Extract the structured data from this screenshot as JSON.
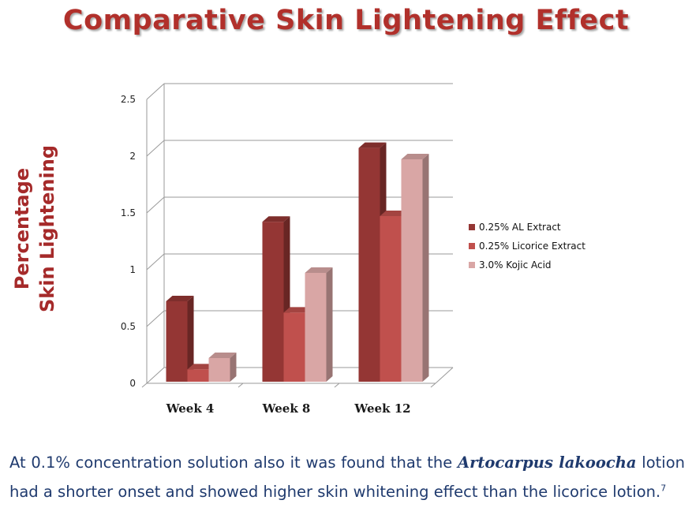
{
  "title": "Comparative Skin Lightening Effect",
  "ylabel_line1": "Percentage",
  "ylabel_line2": "Skin Lightening",
  "caption": {
    "before": "At 0.1% concentration solution also it was found that the ",
    "species": "Artocarpus lakoocha",
    "after": " lotion had a shorter onset and showed higher skin whitening effect than the licorice lotion.",
    "ref": "7"
  },
  "chart_data": {
    "type": "bar",
    "title": "Comparative Skin Lightening Effect",
    "xlabel": "",
    "ylabel": "Percentage Skin Lightening",
    "categories": [
      "Week 4",
      "Week 8",
      "Week 12"
    ],
    "series": [
      {
        "name": "0.25% AL Extract",
        "values": [
          0.75,
          1.45,
          2.1
        ],
        "color": "#943634"
      },
      {
        "name": "0.25% Licorice Extract",
        "values": [
          0.15,
          0.65,
          1.5
        ],
        "color": "#c0504d"
      },
      {
        "name": "3.0% Kojic Acid",
        "values": [
          0.25,
          1.0,
          2.0
        ],
        "color": "#d9a6a5"
      }
    ],
    "ylim": [
      0,
      2.5
    ],
    "yticks": [
      "0",
      "0.5",
      "1",
      "1.5",
      "2",
      "2.5"
    ],
    "grid": true,
    "legend": "right",
    "style": "3d-clustered"
  }
}
